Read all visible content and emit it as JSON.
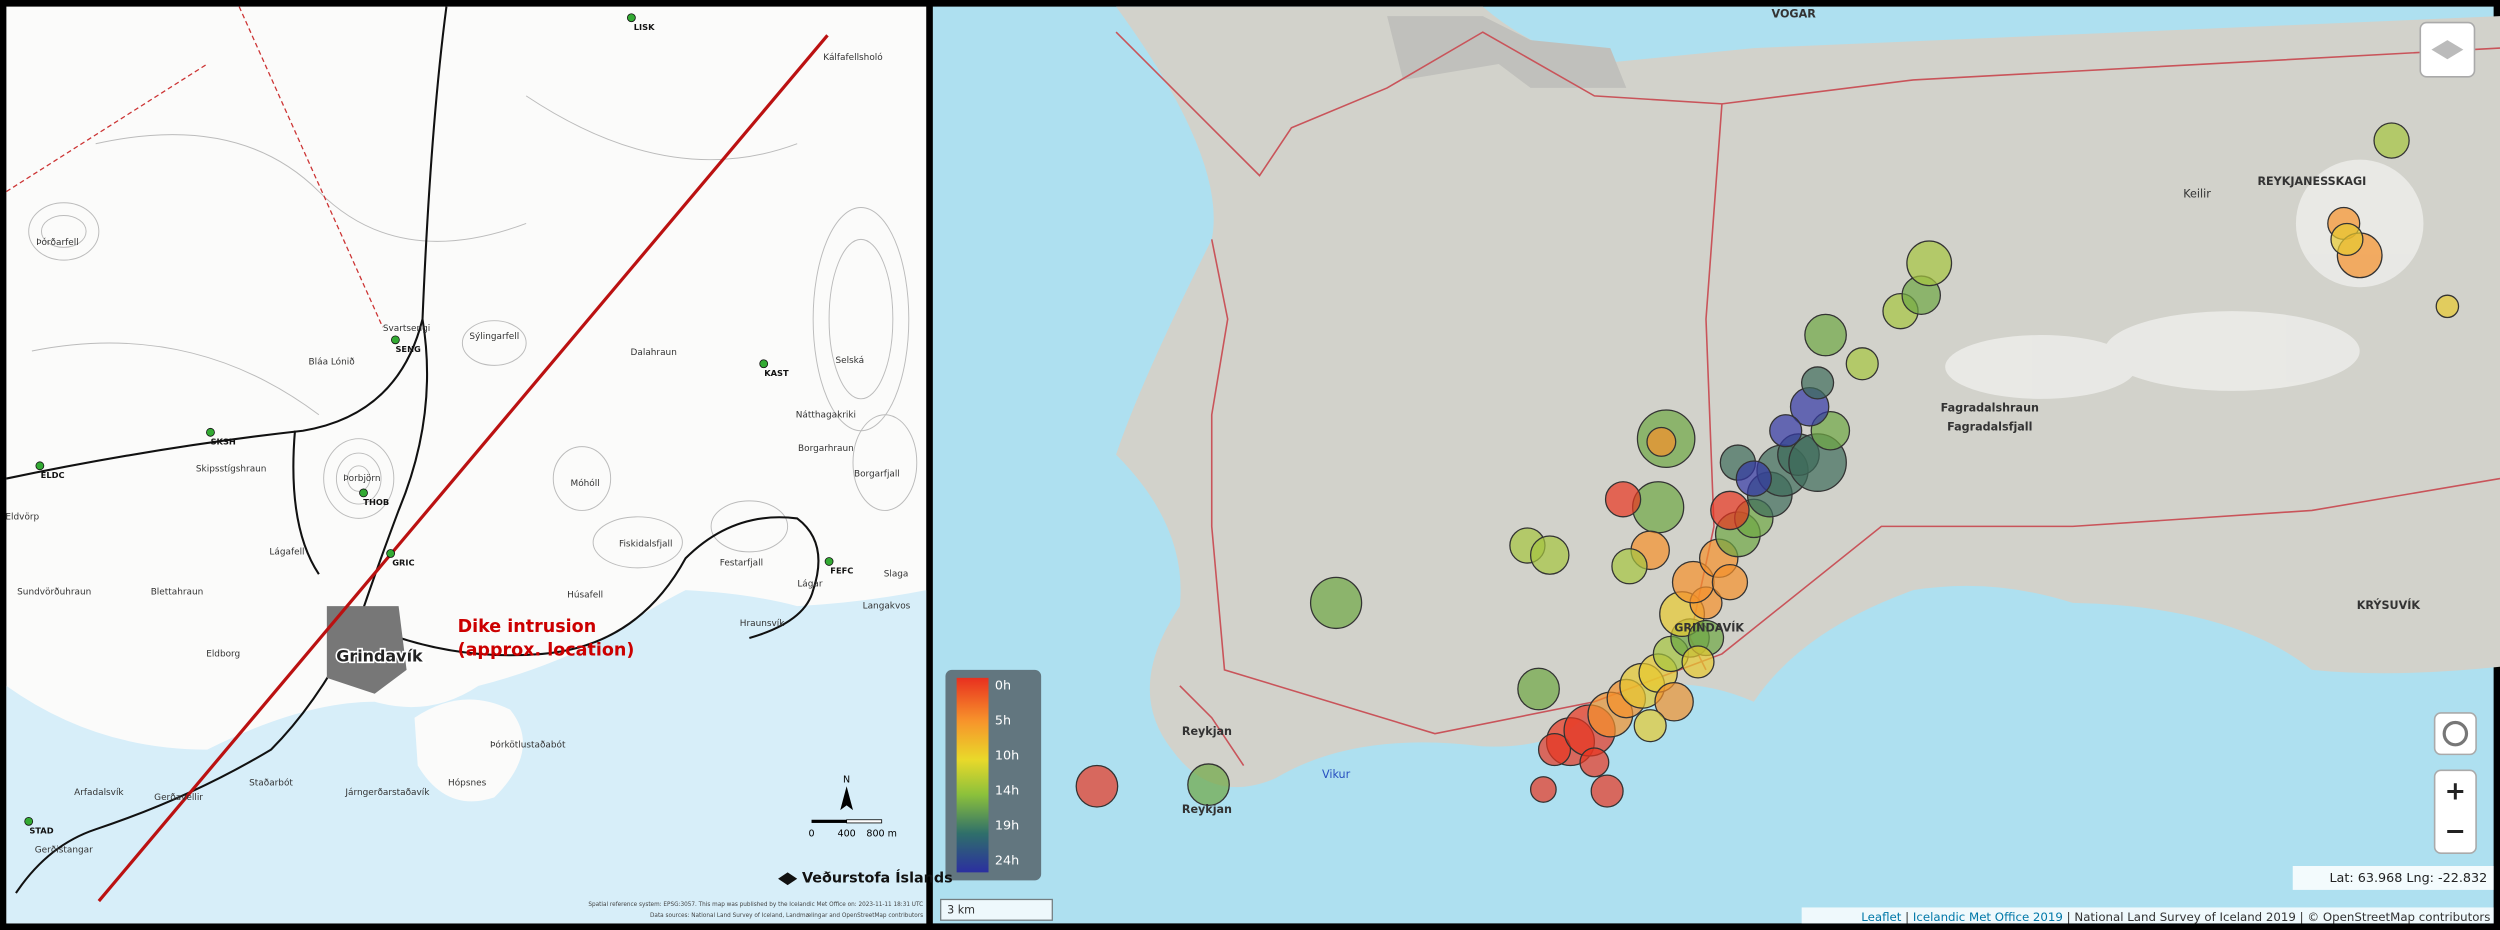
{
  "left_map": {
    "place_labels": [
      "Kálfafellsholó",
      "Þórðarfell",
      "Svartsengi",
      "Sýlingarfell",
      "Bláa Lónið",
      "Dalahraun",
      "Selská",
      "Fiskidalsfjall",
      "Nátthagakriki",
      "Borgarhraun",
      "Borgarfjall",
      "Skipsstígshraun",
      "Eldvörp",
      "Þorbjörn",
      "Lágafell",
      "Móhóll",
      "Húsafell",
      "Festarfjall",
      "Sundvörðuhraun",
      "Blettahraun",
      "Eldborg",
      "Hraunsvík",
      "Þórkötlustaðabót",
      "Hópsnes",
      "Járngerðarstaðavík",
      "Staðarbót",
      "Gerðavellir",
      "Arfadalsvík",
      "Gerðistangar",
      "Grindavík",
      "Lágar",
      "Slaga",
      "Langakvos"
    ],
    "station_labels": [
      "LISK",
      "SENG",
      "KAST",
      "SKSH",
      "ELDC",
      "THOB",
      "GRIC",
      "FEFC",
      "STAD"
    ],
    "annotation": [
      "Dike intrusion",
      "(approx. location)"
    ],
    "north": "N",
    "scale_bar": [
      "0",
      "400",
      "800 m"
    ],
    "logo": "Veðurstofa Íslands",
    "credits": [
      "Spatial reference system: EPSG:3057. This map was published by the Icelandic Met Office on: 2023-11-11 18:31 UTC",
      "Data sources: National Land Survey of Iceland, Landmælingar and OpenStreetMap contributors"
    ]
  },
  "right_map": {
    "place_labels": [
      "VOGAR",
      "REYKJANESSKAGI",
      "Keilir",
      "Fagradalshraun",
      "Fagradalsfjall",
      "GRINDAVÍK",
      "KRÝSUVÍK",
      "Reykjan",
      "Reykjan",
      "Vikur"
    ],
    "legend": [
      "0h",
      "5h",
      "10h",
      "14h",
      "19h",
      "24h"
    ],
    "scale": "3 km",
    "coords": "Lat: 63.968 Lng: -22.832",
    "zoom": [
      "+",
      "−"
    ],
    "attribution": [
      "Leaflet",
      "Icelandic Met Office 2019",
      "National Land Survey of Iceland 2019",
      "© OpenStreetMap contributors"
    ]
  }
}
